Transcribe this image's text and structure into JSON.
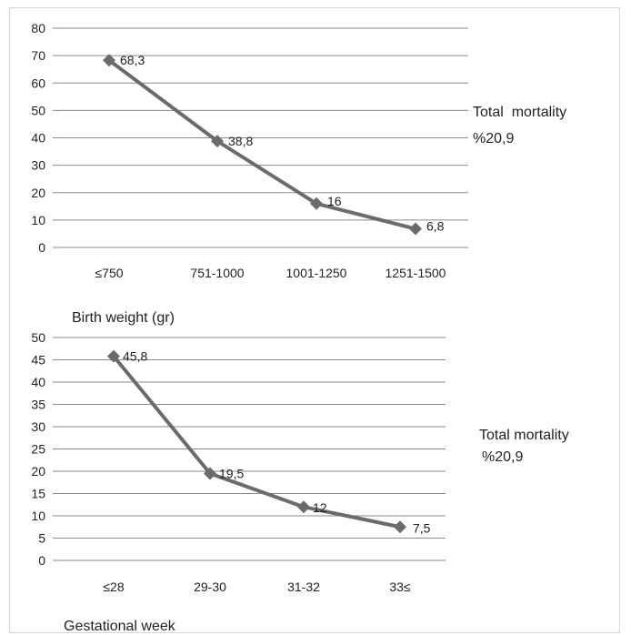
{
  "chart_data": [
    {
      "type": "line",
      "categories": [
        "≤750",
        "751-1000",
        "1001-1250",
        "1251-1500"
      ],
      "series": [
        {
          "values": [
            68.3,
            38.8,
            16,
            6.8
          ],
          "labels": [
            "68,3",
            "38,8",
            "16",
            "6,8"
          ]
        }
      ],
      "yticks": [
        0,
        10,
        20,
        30,
        40,
        50,
        60,
        70,
        80
      ],
      "ylim": [
        0,
        80
      ],
      "xlabel": "Birth weight (gr)",
      "ylabel": "",
      "grid": true,
      "annotation": [
        "Total  mortality",
        "%20,9"
      ],
      "colors": {
        "line": "#6b6b6b",
        "grid": "#8a8a8a",
        "marker": "#6b6b6b"
      }
    },
    {
      "type": "line",
      "categories": [
        "≤28",
        "29-30",
        "31-32",
        "33≤"
      ],
      "series": [
        {
          "values": [
            45.8,
            19.5,
            12,
            7.5
          ],
          "labels": [
            "45,8",
            "19,5",
            "12",
            "7,5"
          ]
        }
      ],
      "yticks": [
        0,
        5,
        10,
        15,
        20,
        25,
        30,
        35,
        40,
        45,
        50
      ],
      "ylim": [
        0,
        50
      ],
      "xlabel": "Gestational week",
      "ylabel": "",
      "grid": true,
      "annotation": [
        "Total mortality",
        "%20,9"
      ],
      "colors": {
        "line": "#6b6b6b",
        "grid": "#8a8a8a",
        "marker": "#6b6b6b"
      }
    }
  ]
}
